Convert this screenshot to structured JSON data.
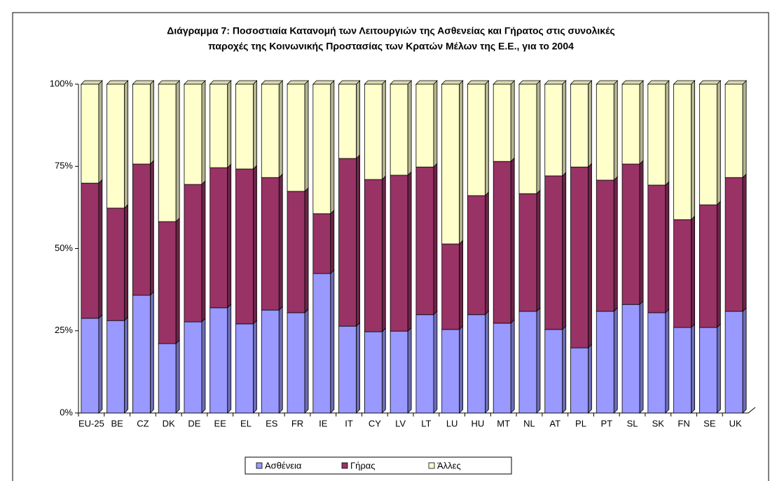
{
  "chart_data": {
    "type": "stacked_bar_100",
    "title": [
      "Διάγραμμα 7: Ποσοστιαία Κατανομή των Λειτουργιών της Ασθενείας και Γήρατος στις συνολικές",
      "παροχές της Κοινωνικής Προστασίας των Κρατών Μέλων της Ε.Ε., για το 2004"
    ],
    "categories": [
      "EU-25",
      "BE",
      "CZ",
      "DK",
      "DE",
      "EE",
      "EL",
      "ES",
      "FR",
      "IE",
      "IT",
      "CY",
      "LV",
      "LT",
      "LU",
      "HU",
      "MT",
      "NL",
      "AT",
      "PL",
      "PT",
      "SL",
      "SK",
      "FN",
      "SE",
      "UK"
    ],
    "series": [
      {
        "name": "Ασθένεια",
        "color": "#9999ff",
        "values": [
          28.8,
          28.1,
          35.8,
          21.1,
          27.7,
          32.0,
          27.1,
          31.3,
          30.5,
          42.4,
          26.4,
          24.7,
          24.9,
          29.9,
          25.4,
          29.9,
          27.3,
          30.9,
          25.4,
          19.8,
          30.9,
          33.0,
          30.5,
          26.0,
          26.0,
          30.9
        ]
      },
      {
        "name": "Γήρας",
        "color": "#993366",
        "values": [
          41.1,
          34.2,
          39.9,
          37.1,
          41.8,
          42.6,
          47.1,
          40.3,
          36.9,
          18.2,
          51.0,
          46.3,
          47.4,
          44.9,
          26.0,
          36.2,
          49.2,
          35.8,
          46.7,
          55.0,
          39.9,
          42.7,
          38.8,
          32.8,
          37.3,
          40.7
        ]
      },
      {
        "name": "Άλλες",
        "color": "#ffffcc",
        "values": [
          30.1,
          37.7,
          24.3,
          41.8,
          30.5,
          25.4,
          25.8,
          28.4,
          32.6,
          39.4,
          22.6,
          29.0,
          27.7,
          25.2,
          48.6,
          33.9,
          23.5,
          33.3,
          27.9,
          25.2,
          29.2,
          24.3,
          30.7,
          41.2,
          36.7,
          28.4
        ]
      }
    ],
    "ylim": [
      0,
      100
    ],
    "yticks": [
      {
        "value": 0,
        "label": "0%"
      },
      {
        "value": 25,
        "label": "25%"
      },
      {
        "value": 50,
        "label": "50%"
      },
      {
        "value": 75,
        "label": "75%"
      },
      {
        "value": 100,
        "label": "100%"
      }
    ],
    "legend": "bottom"
  }
}
